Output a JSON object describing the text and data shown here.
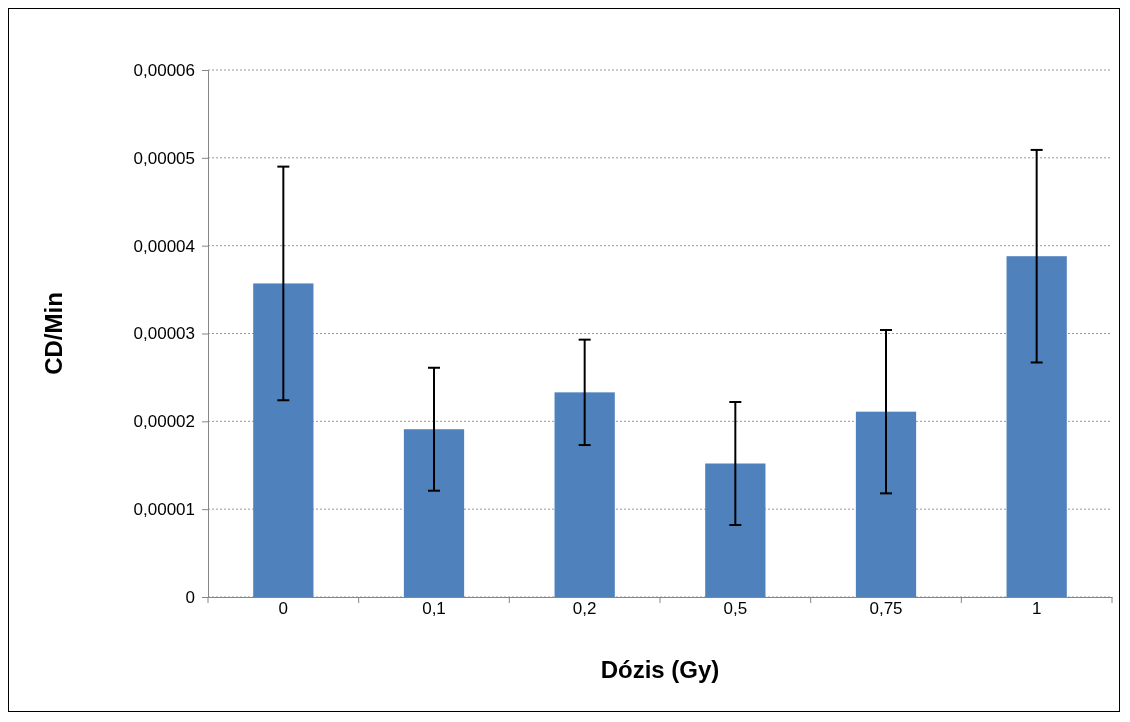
{
  "chart_data": {
    "type": "bar",
    "xlabel": "Dózis (Gy)",
    "ylabel": "CD/Min",
    "categories": [
      "0",
      "0,1",
      "0,2",
      "0,5",
      "0,75",
      "1"
    ],
    "values": [
      3.57e-05,
      1.91e-05,
      2.33e-05,
      1.52e-05,
      2.11e-05,
      3.88e-05
    ],
    "errors": [
      1.33e-05,
      7e-06,
      6e-06,
      7e-06,
      9.3e-06,
      1.21e-05
    ],
    "color": "#4f81bd",
    "ylim": [
      0,
      6e-05
    ],
    "yticks": [
      {
        "value": 0,
        "label": "0"
      },
      {
        "value": 1e-05,
        "label": "0,00001"
      },
      {
        "value": 2e-05,
        "label": "0,00002"
      },
      {
        "value": 3e-05,
        "label": "0,00003"
      },
      {
        "value": 4e-05,
        "label": "0,00004"
      },
      {
        "value": 5e-05,
        "label": "0,00005"
      },
      {
        "value": 6e-05,
        "label": "0,00006"
      }
    ],
    "grid": "y"
  }
}
